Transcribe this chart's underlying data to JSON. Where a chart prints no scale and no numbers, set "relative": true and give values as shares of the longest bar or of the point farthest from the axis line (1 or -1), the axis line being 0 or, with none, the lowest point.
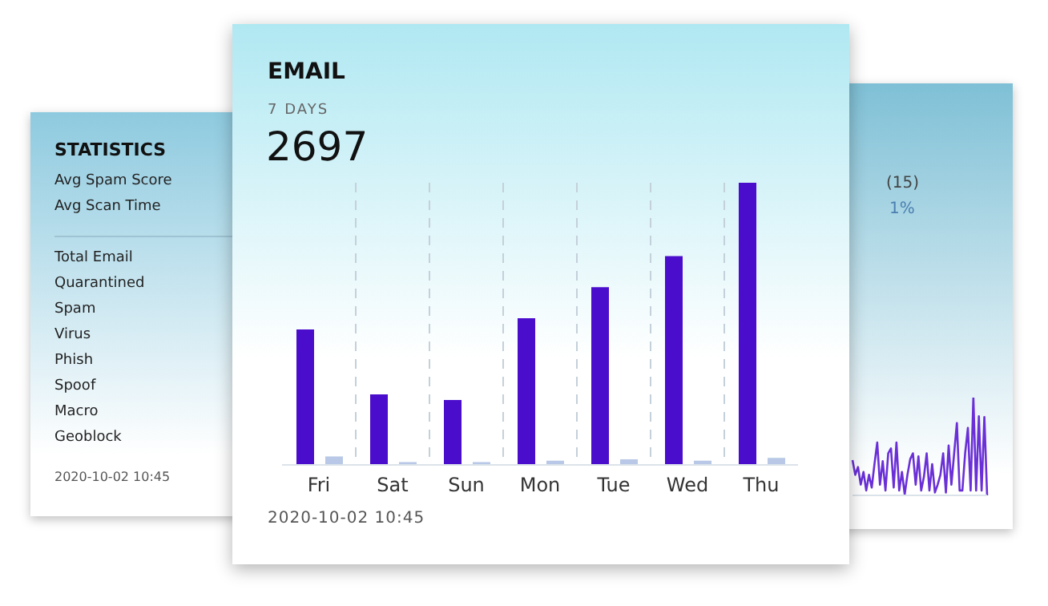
{
  "chart_data": [
    {
      "type": "other",
      "title": "STATISTICS",
      "annotations": [
        "Avg Spam Score",
        "Avg Scan Time",
        "Total Email",
        "Quarantined",
        "Spam",
        "Virus",
        "Phish",
        "Spoof",
        "Macro",
        "Geoblock",
        "2020-10-02 10:45"
      ]
    },
    {
      "type": "bar",
      "title": "EMAIL",
      "subtitle": "7 DAYS",
      "annotations": [
        "2697",
        "2020-10-02 10:45"
      ],
      "relative": true,
      "grid": "x",
      "categories": [
        "Fri",
        "Sat",
        "Sun",
        "Mon",
        "Tue",
        "Wed",
        "Thu"
      ],
      "series": [
        {
          "color": "#4b0dcc",
          "values": [
            0.48,
            0.25,
            0.23,
            0.52,
            0.63,
            0.74,
            1
          ]
        },
        {
          "color": "#b8c8e6",
          "values": [
            0.03,
            0.01,
            0.01,
            0.015,
            0.02,
            0.015,
            0.025
          ]
        }
      ]
    },
    {
      "type": "line",
      "relative": true,
      "annotations": [
        "(15)",
        "1%"
      ],
      "categories": [
        null,
        null,
        null,
        null,
        null,
        null,
        null,
        null,
        null,
        null,
        null,
        null,
        null,
        null,
        null,
        null,
        null,
        null,
        null,
        null,
        null,
        null,
        null,
        null,
        null,
        null,
        null,
        null,
        null,
        null,
        null,
        null,
        null,
        null,
        null,
        null,
        null,
        null,
        null,
        null,
        null,
        null,
        null,
        null,
        null,
        null,
        null,
        null,
        null,
        null
      ],
      "series": [
        {
          "color": "#6a2fd6",
          "values": [
            0.36,
            0.21,
            0.29,
            0.11,
            0.24,
            0.05,
            0.21,
            0.08,
            0.32,
            0.54,
            0.11,
            0.35,
            0.05,
            0.43,
            0.48,
            0.08,
            0.54,
            0.05,
            0.24,
            0.01,
            0.21,
            0.37,
            0.43,
            0.11,
            0.4,
            0.05,
            0.19,
            0.43,
            0.05,
            0.32,
            0.03,
            0.11,
            0.21,
            0.43,
            0.03,
            0.51,
            0.11,
            0.43,
            0.74,
            0.05,
            0.05,
            0.43,
            0.69,
            0.05,
            1,
            0.05,
            0.81,
            0.05,
            0.8,
            0
          ]
        }
      ]
    }
  ]
}
